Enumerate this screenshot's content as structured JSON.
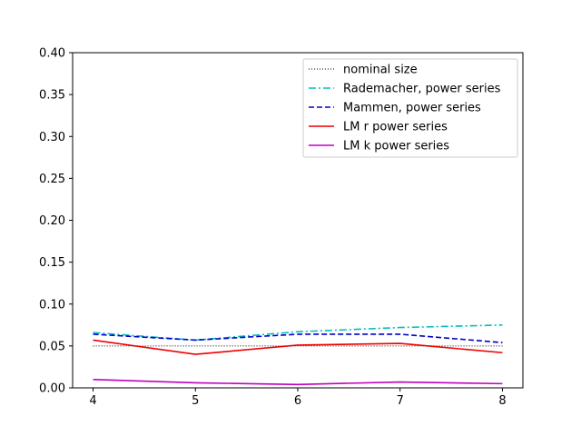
{
  "chart_data": {
    "type": "line",
    "title": "",
    "xlabel": "",
    "ylabel": "",
    "x": [
      4,
      5,
      6,
      7,
      8
    ],
    "xlim": [
      3.8,
      8.2
    ],
    "ylim": [
      0,
      0.4
    ],
    "xticks": [
      "4",
      "5",
      "6",
      "7",
      "8"
    ],
    "yticks": [
      "0.00",
      "0.05",
      "0.10",
      "0.15",
      "0.20",
      "0.25",
      "0.30",
      "0.35",
      "0.40"
    ],
    "grid": false,
    "legend_position": "top-right",
    "series": [
      {
        "name": "nominal size",
        "values": [
          0.05,
          0.05,
          0.05,
          0.05,
          0.05
        ],
        "color": "#000000",
        "style": "dotted"
      },
      {
        "name": "Rademacher, power series",
        "values": [
          0.066,
          0.057,
          0.067,
          0.072,
          0.075
        ],
        "color": "#00bfbf",
        "style": "dashdot"
      },
      {
        "name": "Mammen, power series",
        "values": [
          0.064,
          0.057,
          0.064,
          0.064,
          0.054
        ],
        "color": "#0000cc",
        "style": "dashed"
      },
      {
        "name": "LM r power series",
        "values": [
          0.057,
          0.04,
          0.051,
          0.053,
          0.042
        ],
        "color": "#ee0000",
        "style": "solid"
      },
      {
        "name": "LM k power series",
        "values": [
          0.01,
          0.006,
          0.004,
          0.007,
          0.005
        ],
        "color": "#bf00bf",
        "style": "solid"
      }
    ]
  }
}
